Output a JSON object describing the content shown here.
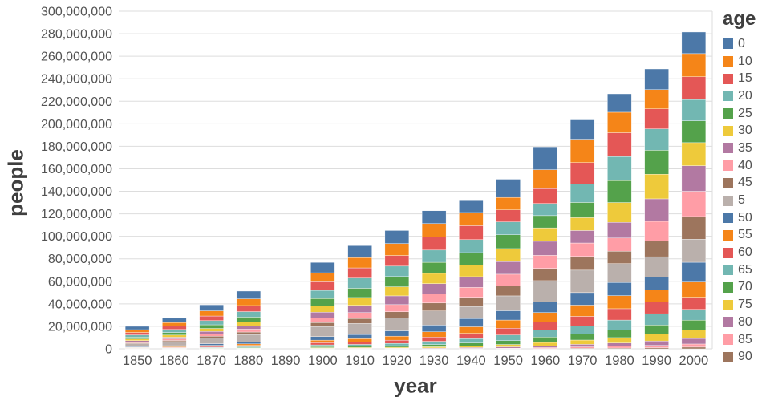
{
  "chart_data": {
    "type": "bar",
    "stacked": true,
    "title": "",
    "xlabel": "year",
    "ylabel": "people",
    "legend_title": "age",
    "legend_position": "top-right",
    "grid": true,
    "background": "#ffffff",
    "grid_color": "#dddddd",
    "tick_label_color": "#535353",
    "axis_title_color": "#3f3f3f",
    "ylim": [
      0,
      300000000
    ],
    "yticks": [
      0,
      20000000,
      40000000,
      60000000,
      80000000,
      100000000,
      120000000,
      140000000,
      160000000,
      180000000,
      200000000,
      220000000,
      240000000,
      260000000,
      280000000,
      300000000
    ],
    "categories": [
      "1850",
      "1860",
      "1870",
      "1880",
      "1890",
      "1900",
      "1910",
      "1920",
      "1930",
      "1940",
      "1950",
      "1960",
      "1970",
      "1980",
      "1990",
      "2000"
    ],
    "palette": [
      "#4c78a8",
      "#f58518",
      "#e45756",
      "#72b7b2",
      "#54a24b",
      "#eeca3b",
      "#b279a2",
      "#ff9da6",
      "#9d755d",
      "#bab0ac"
    ],
    "series": [
      {
        "name": "0",
        "color": "#4c78a8",
        "values": [
          2934000,
          3800000,
          5320000,
          6900000,
          0,
          9170000,
          10630000,
          11570000,
          11440000,
          10540000,
          16160000,
          20320000,
          17150000,
          16350000,
          18350000,
          19180000
        ]
      },
      {
        "name": "10",
        "color": "#f58518",
        "values": [
          2476000,
          3290000,
          4600000,
          5960000,
          0,
          8080000,
          9110000,
          10640000,
          12000000,
          11750000,
          11120000,
          16770000,
          20790000,
          18240000,
          17110000,
          20530000
        ]
      },
      {
        "name": "15",
        "color": "#e45756",
        "values": [
          2188000,
          2900000,
          4110000,
          5380000,
          0,
          7560000,
          9060000,
          9430000,
          11550000,
          12330000,
          10620000,
          13220000,
          19070000,
          21170000,
          17750000,
          20220000
        ]
      },
      {
        "name": "20",
        "color": "#72b7b2",
        "values": [
          2021000,
          2690000,
          3720000,
          4890000,
          0,
          7340000,
          9060000,
          9280000,
          10870000,
          11590000,
          11480000,
          10800000,
          16370000,
          21320000,
          19020000,
          18960000
        ]
      },
      {
        "name": "25",
        "color": "#54a24b",
        "values": [
          1662000,
          2290000,
          3220000,
          4170000,
          0,
          6530000,
          8180000,
          9090000,
          9830000,
          11100000,
          12240000,
          10870000,
          13480000,
          19520000,
          21310000,
          19380000
        ]
      },
      {
        "name": "30",
        "color": "#eeca3b",
        "values": [
          1370000,
          1890000,
          2670000,
          3500000,
          0,
          5560000,
          7000000,
          8070000,
          9120000,
          10240000,
          11520000,
          11950000,
          11430000,
          17560000,
          21860000,
          20510000
        ]
      },
      {
        "name": "35",
        "color": "#b279a2",
        "values": [
          1093000,
          1540000,
          2280000,
          3020000,
          0,
          5060000,
          6400000,
          7780000,
          9210000,
          9550000,
          11250000,
          12480000,
          11110000,
          13970000,
          19960000,
          22710000
        ]
      },
      {
        "name": "40",
        "color": "#ff9da6",
        "values": [
          904000,
          1310000,
          1960000,
          2570000,
          0,
          4220000,
          5260000,
          6350000,
          7990000,
          8790000,
          10180000,
          11600000,
          11980000,
          11670000,
          17620000,
          22440000
        ]
      },
      {
        "name": "45",
        "color": "#9d755d",
        "values": [
          725000,
          1020000,
          1580000,
          2160000,
          0,
          3540000,
          4470000,
          5550000,
          7040000,
          8260000,
          9070000,
          10880000,
          12120000,
          11090000,
          13870000,
          20090000
        ]
      },
      {
        "name": "5",
        "color": "#bab0ac",
        "values": [
          2771000,
          3690000,
          5100000,
          6570000,
          0,
          8880000,
          9760000,
          11390000,
          12610000,
          10680000,
          13200000,
          18690000,
          19960000,
          16700000,
          18100000,
          20550000
        ]
      },
      {
        "name": "50",
        "color": "#4c78a8",
        "values": [
          608000,
          890000,
          1390000,
          1810000,
          0,
          3130000,
          3760000,
          4730000,
          5980000,
          7260000,
          8270000,
          9610000,
          11110000,
          11710000,
          11350000,
          17590000
        ]
      },
      {
        "name": "55",
        "color": "#f58518",
        "values": [
          381000,
          600000,
          980000,
          1360000,
          0,
          2300000,
          2800000,
          3550000,
          4650000,
          5840000,
          7230000,
          8430000,
          9980000,
          11620000,
          10530000,
          13470000
        ]
      },
      {
        "name": "60",
        "color": "#e45756",
        "values": [
          337000,
          520000,
          830000,
          1130000,
          0,
          1930000,
          2260000,
          2880000,
          3750000,
          4730000,
          6060000,
          7140000,
          8620000,
          10090000,
          10620000,
          10810000
        ]
      },
      {
        "name": "65",
        "color": "#72b7b2",
        "values": [
          212000,
          330000,
          580000,
          800000,
          0,
          1460000,
          1680000,
          2070000,
          2940000,
          3810000,
          5030000,
          6260000,
          6990000,
          8780000,
          10110000,
          9530000
        ]
      },
      {
        "name": "70",
        "color": "#54a24b",
        "values": [
          145000,
          220000,
          390000,
          550000,
          0,
          1000000,
          1110000,
          1390000,
          1950000,
          2570000,
          3410000,
          4740000,
          5440000,
          6800000,
          7990000,
          8860000
        ]
      },
      {
        "name": "75",
        "color": "#eeca3b",
        "values": [
          81000,
          120000,
          220000,
          330000,
          0,
          610000,
          670000,
          810000,
          1070000,
          1500000,
          2130000,
          3050000,
          3830000,
          4790000,
          6120000,
          7420000
        ]
      },
      {
        "name": "80",
        "color": "#b279a2",
        "values": [
          46000,
          70000,
          110000,
          160000,
          0,
          300000,
          320000,
          400000,
          530000,
          770000,
          1150000,
          1580000,
          2280000,
          2940000,
          3930000,
          4950000
        ]
      },
      {
        "name": "85",
        "color": "#ff9da6",
        "values": [
          19000,
          30000,
          40000,
          50000,
          0,
          100000,
          120000,
          140000,
          180000,
          290000,
          450000,
          770000,
          1200000,
          1580000,
          2060000,
          2790000
        ]
      },
      {
        "name": "90",
        "color": "#9d755d",
        "values": [
          12000,
          10000,
          10000,
          20000,
          0,
          30000,
          40000,
          40000,
          50000,
          90000,
          150000,
          330000,
          530000,
          700000,
          1030000,
          1510000
        ]
      }
    ],
    "stack_order_bottom_to_top": [
      "90",
      "85",
      "80",
      "75",
      "70",
      "65",
      "60",
      "55",
      "50",
      "5",
      "45",
      "40",
      "35",
      "30",
      "25",
      "20",
      "15",
      "10",
      "0"
    ]
  }
}
